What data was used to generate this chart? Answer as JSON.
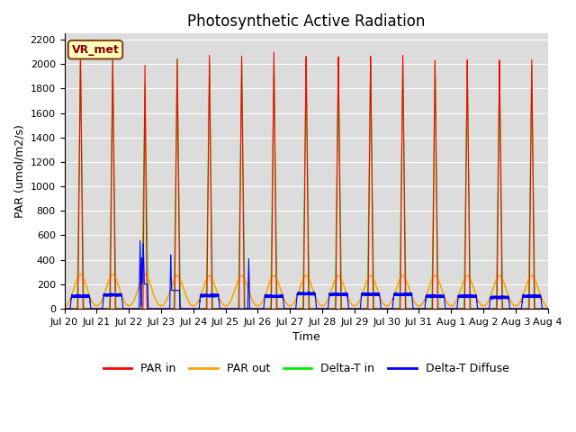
{
  "title": "Photosynthetic Active Radiation",
  "ylabel": "PAR (umol/m2/s)",
  "xlabel": "Time",
  "annotation": "VR_met",
  "ylim": [
    0,
    2250
  ],
  "yticks": [
    0,
    200,
    400,
    600,
    800,
    1000,
    1200,
    1400,
    1600,
    1800,
    2000,
    2200
  ],
  "x_tick_labels": [
    "Jul 20",
    "Jul 21",
    "Jul 22",
    "Jul 23",
    "Jul 24",
    "Jul 25",
    "Jul 26",
    "Jul 27",
    "Jul 28",
    "Jul 29",
    "Jul 30",
    "Jul 31",
    "Aug 1",
    "Aug 2",
    "Aug 3",
    "Aug 4"
  ],
  "colors": {
    "PAR_in": "#FF0000",
    "PAR_out": "#FFA500",
    "Delta_T_in": "#00EE00",
    "Delta_T_Diffuse": "#0000FF"
  },
  "legend_labels": [
    "PAR in",
    "PAR out",
    "Delta-T in",
    "Delta-T Diffuse"
  ],
  "background_color": "#DCDCDC",
  "title_fontsize": 12,
  "axis_fontsize": 9
}
